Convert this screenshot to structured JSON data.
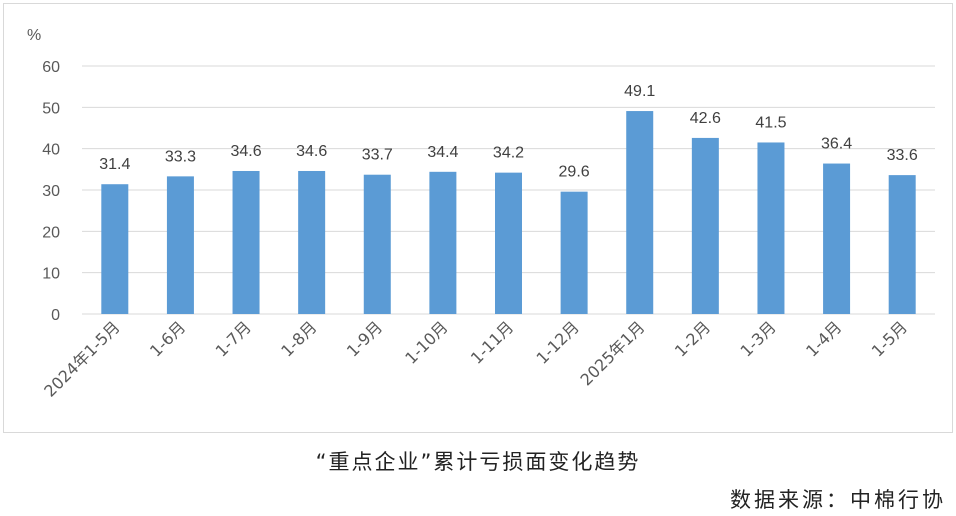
{
  "caption": "“重点企业”累计亏损面变化趋势",
  "source": "数据来源：中棉行协",
  "chart_data": {
    "type": "bar",
    "y_unit": "%",
    "ylim": [
      0,
      60
    ],
    "yticks": [
      0,
      10,
      20,
      30,
      40,
      50,
      60
    ],
    "grid": true,
    "legend": "none",
    "bar_color": "#5b9bd5",
    "categories": [
      "2024年1-5月",
      "1-6月",
      "1-7月",
      "1-8月",
      "1-9月",
      "1-10月",
      "1-11月",
      "1-12月",
      "2025年1月",
      "1-2月",
      "1-3月",
      "1-4月",
      "1-5月"
    ],
    "values": [
      31.4,
      33.3,
      34.6,
      34.6,
      33.7,
      34.4,
      34.2,
      29.6,
      49.1,
      42.6,
      41.5,
      36.4,
      33.6
    ],
    "value_labels": [
      "31.4",
      "33.3",
      "34.6",
      "34.6",
      "33.7",
      "34.4",
      "34.2",
      "29.6",
      "49.1",
      "42.6",
      "41.5",
      "36.4",
      "33.6"
    ]
  }
}
